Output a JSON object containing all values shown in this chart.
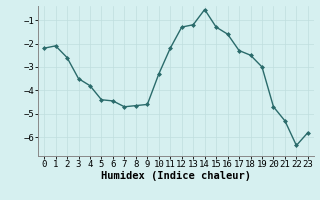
{
  "x": [
    0,
    1,
    2,
    3,
    4,
    5,
    6,
    7,
    8,
    9,
    10,
    11,
    12,
    13,
    14,
    15,
    16,
    17,
    18,
    19,
    20,
    21,
    22,
    23
  ],
  "y": [
    -2.2,
    -2.1,
    -2.6,
    -3.5,
    -3.8,
    -4.4,
    -4.45,
    -4.7,
    -4.65,
    -4.6,
    -3.3,
    -2.2,
    -1.3,
    -1.2,
    -0.55,
    -1.3,
    -1.6,
    -2.3,
    -2.5,
    -3.0,
    -4.7,
    -5.3,
    -6.35,
    -5.8
  ],
  "line_color": "#2a6b6b",
  "marker": "D",
  "marker_size": 2.0,
  "bg_color": "#d6f0f0",
  "grid_color": "#c0dede",
  "xlabel": "Humidex (Indice chaleur)",
  "ylim": [
    -6.8,
    -0.4
  ],
  "xlim": [
    -0.5,
    23.5
  ],
  "yticks": [
    -1,
    -2,
    -3,
    -4,
    -5,
    -6
  ],
  "xticks": [
    0,
    1,
    2,
    3,
    4,
    5,
    6,
    7,
    8,
    9,
    10,
    11,
    12,
    13,
    14,
    15,
    16,
    17,
    18,
    19,
    20,
    21,
    22,
    23
  ],
  "xlabel_fontsize": 7.5,
  "tick_fontsize": 6.5,
  "spine_color": "#888888"
}
